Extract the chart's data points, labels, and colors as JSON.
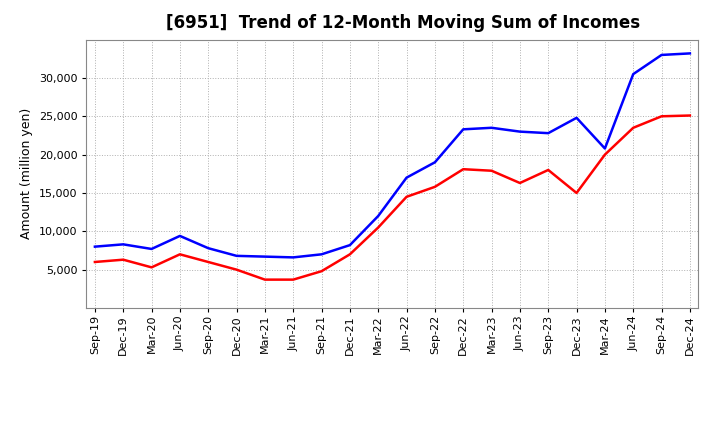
{
  "title": "[6951]  Trend of 12-Month Moving Sum of Incomes",
  "ylabel": "Amount (million yen)",
  "background_color": "#ffffff",
  "plot_bg_color": "#ffffff",
  "grid_color": "#b0b0b0",
  "line_color_ordinary": "#0000ff",
  "line_color_net": "#ff0000",
  "x_labels": [
    "Sep-19",
    "Dec-19",
    "Mar-20",
    "Jun-20",
    "Sep-20",
    "Dec-20",
    "Mar-21",
    "Jun-21",
    "Sep-21",
    "Dec-21",
    "Mar-22",
    "Jun-22",
    "Sep-22",
    "Dec-22",
    "Mar-23",
    "Jun-23",
    "Sep-23",
    "Dec-23",
    "Mar-24",
    "Jun-24",
    "Sep-24",
    "Dec-24"
  ],
  "ordinary_income": [
    8000,
    8300,
    7700,
    9400,
    7800,
    6800,
    6700,
    6600,
    7000,
    8200,
    12000,
    17000,
    19000,
    23300,
    23500,
    23000,
    22800,
    24800,
    20800,
    30500,
    33000,
    33200
  ],
  "net_income": [
    6000,
    6300,
    5300,
    7000,
    6000,
    5000,
    3700,
    3700,
    4800,
    7000,
    10500,
    14500,
    15800,
    18100,
    17900,
    16300,
    18000,
    15000,
    20000,
    23500,
    25000,
    25100
  ],
  "ylim": [
    0,
    35000
  ],
  "yticks": [
    5000,
    10000,
    15000,
    20000,
    25000,
    30000
  ],
  "title_fontsize": 12,
  "axis_fontsize": 9,
  "tick_fontsize": 8,
  "legend_fontsize": 9,
  "linewidth": 1.8
}
